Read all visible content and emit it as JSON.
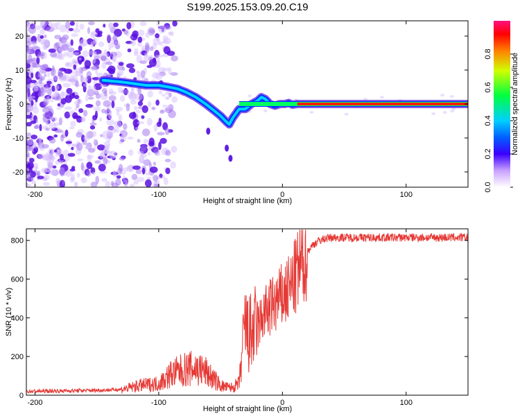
{
  "title": "S199.2025.153.09.20.C19",
  "chart_data": [
    {
      "type": "heatmap",
      "xlabel": "Height of straight line (km)",
      "ylabel": "Frequency (Hz)",
      "xlim": [
        -207,
        150
      ],
      "ylim": [
        -24.5,
        24.5
      ],
      "xticks": [
        -200,
        -100,
        0,
        100
      ],
      "yticks": [
        20,
        10,
        0,
        -10,
        -20
      ],
      "colorbar": {
        "label": "Normalized spectral amplitude",
        "range": [
          0,
          1
        ],
        "ticks": [
          0.0,
          0.2,
          0.4,
          0.6,
          0.8
        ]
      },
      "ridge": {
        "x": [
          -145,
          -130,
          -120,
          -110,
          -100,
          -92,
          -85,
          -78,
          -70,
          -62,
          -55,
          -50,
          -46,
          -43,
          -40,
          -35,
          -30,
          -25,
          -20,
          -17,
          -14,
          -10,
          -6,
          -2,
          2,
          5,
          8,
          12,
          20,
          40,
          80,
          150
        ],
        "y": [
          7,
          6.5,
          6,
          5.5,
          5.5,
          5,
          4.5,
          3.5,
          2,
          0,
          -2,
          -3.5,
          -5,
          -6,
          -4,
          -1.5,
          -1.5,
          0,
          1,
          2,
          1.5,
          0,
          -0.5,
          0,
          0,
          0.3,
          -0.2,
          0,
          0,
          0,
          0,
          0
        ]
      }
    },
    {
      "type": "line",
      "xlabel": "Height of straight line (km)",
      "ylabel": "SNR (10 * v/v)",
      "xlim": [
        -207,
        150
      ],
      "ylim": [
        0,
        860
      ],
      "xticks": [
        -200,
        -100,
        0,
        100
      ],
      "yticks": [
        0,
        200,
        400,
        600,
        800
      ],
      "color": "#e53935",
      "series": [
        {
          "x": [
            -207,
            -180,
            -150,
            -130,
            -115,
            -100,
            -90,
            -80,
            -70,
            -62,
            -55,
            -50,
            -45,
            -40,
            -35,
            -32,
            -30,
            -28,
            -25,
            -20,
            -15,
            -10,
            -5,
            0,
            5,
            10,
            15,
            20,
            25,
            30,
            35,
            40,
            50,
            60,
            80,
            100,
            120,
            150
          ],
          "y": [
            20,
            22,
            25,
            30,
            50,
            60,
            110,
            130,
            140,
            120,
            80,
            50,
            40,
            40,
            60,
            250,
            370,
            300,
            320,
            350,
            420,
            450,
            480,
            510,
            540,
            600,
            680,
            740,
            780,
            800,
            810,
            815,
            815,
            815,
            815,
            815,
            815,
            815
          ]
        }
      ]
    }
  ]
}
